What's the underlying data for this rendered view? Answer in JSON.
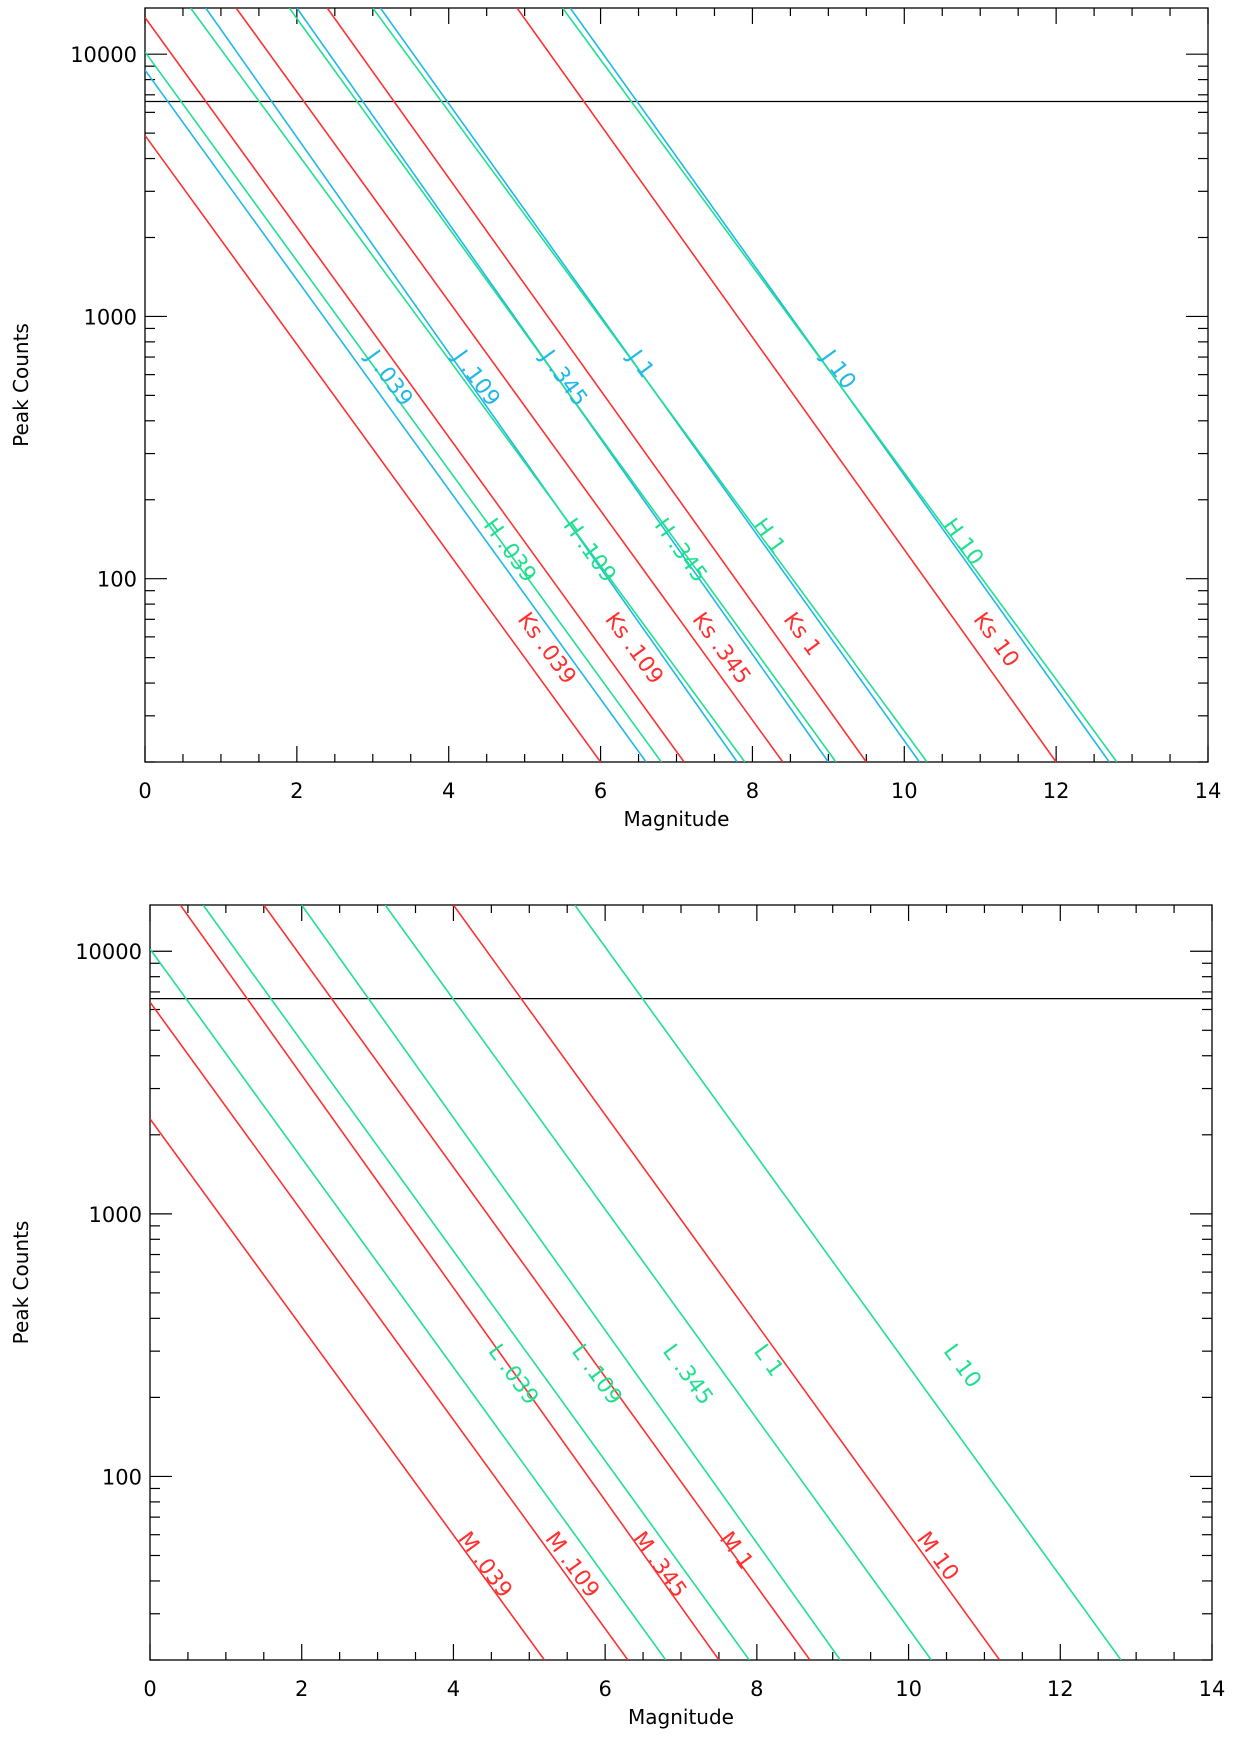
{
  "chart_data": [
    {
      "type": "line",
      "panel": "top",
      "xlabel": "Magnitude",
      "ylabel": "Peak Counts",
      "xlim": [
        0,
        14
      ],
      "ylim": [
        20,
        15000
      ],
      "yscale": "log",
      "grid": false,
      "x_ticks": [
        0,
        2,
        4,
        6,
        8,
        10,
        12,
        14
      ],
      "x_tick_labels": [
        "0",
        "2",
        "4",
        "6",
        "8",
        "10",
        "12",
        "14"
      ],
      "y_ticks": [
        100,
        1000,
        10000
      ],
      "y_tick_labels": [
        "100",
        "1000",
        "10000"
      ],
      "reference_line": {
        "y": 6600,
        "color": "#000000"
      },
      "series": [
        {
          "name": "Ks .039",
          "color": "#ff3030",
          "x": [
            0,
            6.0
          ],
          "y": [
            4900,
            20
          ]
        },
        {
          "name": "J .039",
          "color": "#20b8e8",
          "x": [
            0,
            6.6
          ],
          "y": [
            8700,
            20
          ]
        },
        {
          "name": "H .039",
          "color": "#20e090",
          "x": [
            0,
            6.8
          ],
          "y": [
            10200,
            20
          ]
        },
        {
          "name": "Ks .109",
          "color": "#ff3030",
          "x": [
            0,
            7.1
          ],
          "y": [
            13800,
            20
          ]
        },
        {
          "name": "J .109",
          "color": "#20b8e8",
          "x": [
            0.8,
            7.8
          ],
          "y": [
            15000,
            20
          ]
        },
        {
          "name": "H .109",
          "color": "#20e090",
          "x": [
            0.6,
            7.9
          ],
          "y": [
            15000,
            20
          ]
        },
        {
          "name": "Ks .345",
          "color": "#ff3030",
          "x": [
            1.2,
            8.4
          ],
          "y": [
            15000,
            20
          ]
        },
        {
          "name": "J .345",
          "color": "#20b8e8",
          "x": [
            2.0,
            9.0
          ],
          "y": [
            15000,
            20
          ]
        },
        {
          "name": "H .345",
          "color": "#20e090",
          "x": [
            1.9,
            9.1
          ],
          "y": [
            15000,
            20
          ]
        },
        {
          "name": "Ks 1",
          "color": "#ff3030",
          "x": [
            2.4,
            9.5
          ],
          "y": [
            15000,
            20
          ]
        },
        {
          "name": "J 1",
          "color": "#20b8e8",
          "x": [
            3.1,
            10.2
          ],
          "y": [
            15000,
            20
          ]
        },
        {
          "name": "H 1",
          "color": "#20e090",
          "x": [
            3.0,
            10.3
          ],
          "y": [
            15000,
            20
          ]
        },
        {
          "name": "Ks 10",
          "color": "#ff3030",
          "x": [
            4.9,
            12.0
          ],
          "y": [
            15000,
            20
          ]
        },
        {
          "name": "J 10",
          "color": "#20b8e8",
          "x": [
            5.6,
            12.7
          ],
          "y": [
            15000,
            20
          ]
        },
        {
          "name": "H 10",
          "color": "#20e090",
          "x": [
            5.5,
            12.8
          ],
          "y": [
            15000,
            20
          ]
        }
      ],
      "labels": [
        {
          "text": "J .039",
          "color": "#20b8e8",
          "x": 2.9,
          "y": 700
        },
        {
          "text": "J .109",
          "color": "#20b8e8",
          "x": 4.05,
          "y": 700
        },
        {
          "text": "J .345",
          "color": "#20b8e8",
          "x": 5.2,
          "y": 700
        },
        {
          "text": "J 1",
          "color": "#20b8e8",
          "x": 6.35,
          "y": 700
        },
        {
          "text": "J 10",
          "color": "#20b8e8",
          "x": 8.9,
          "y": 700
        },
        {
          "text": "H .039",
          "color": "#20e090",
          "x": 4.45,
          "y": 160
        },
        {
          "text": "H .109",
          "color": "#20e090",
          "x": 5.5,
          "y": 160
        },
        {
          "text": "H .345",
          "color": "#20e090",
          "x": 6.7,
          "y": 160
        },
        {
          "text": "H 1",
          "color": "#20e090",
          "x": 8.0,
          "y": 160
        },
        {
          "text": "H 10",
          "color": "#20e090",
          "x": 10.5,
          "y": 160
        },
        {
          "text": "Ks .039",
          "color": "#ff3030",
          "x": 4.9,
          "y": 70
        },
        {
          "text": "Ks .109",
          "color": "#ff3030",
          "x": 6.05,
          "y": 70
        },
        {
          "text": "Ks .345",
          "color": "#ff3030",
          "x": 7.2,
          "y": 70
        },
        {
          "text": "Ks 1",
          "color": "#ff3030",
          "x": 8.4,
          "y": 70
        },
        {
          "text": "Ks 10",
          "color": "#ff3030",
          "x": 10.9,
          "y": 70
        }
      ]
    },
    {
      "type": "line",
      "panel": "bottom",
      "xlabel": "Magnitude",
      "ylabel": "Peak Counts",
      "xlim": [
        0,
        14
      ],
      "ylim": [
        20,
        15000
      ],
      "yscale": "log",
      "grid": false,
      "x_ticks": [
        0,
        2,
        4,
        6,
        8,
        10,
        12,
        14
      ],
      "x_tick_labels": [
        "0",
        "2",
        "4",
        "6",
        "8",
        "10",
        "12",
        "14"
      ],
      "y_ticks": [
        100,
        1000,
        10000
      ],
      "y_tick_labels": [
        "100",
        "1000",
        "10000"
      ],
      "reference_line": {
        "y": 6600,
        "color": "#000000"
      },
      "series": [
        {
          "name": "M .039",
          "color": "#ff3030",
          "x": [
            0,
            5.2
          ],
          "y": [
            2300,
            20
          ]
        },
        {
          "name": "M .109",
          "color": "#ff3030",
          "x": [
            0,
            6.3
          ],
          "y": [
            6400,
            20
          ]
        },
        {
          "name": "L .039",
          "color": "#20e090",
          "x": [
            0,
            6.8
          ],
          "y": [
            10200,
            20
          ]
        },
        {
          "name": "M .345",
          "color": "#ff3030",
          "x": [
            0.4,
            7.5
          ],
          "y": [
            15000,
            20
          ]
        },
        {
          "name": "L .109",
          "color": "#20e090",
          "x": [
            0.7,
            7.9
          ],
          "y": [
            15000,
            20
          ]
        },
        {
          "name": "M 1",
          "color": "#ff3030",
          "x": [
            1.5,
            8.7
          ],
          "y": [
            15000,
            20
          ]
        },
        {
          "name": "L .345",
          "color": "#20e090",
          "x": [
            2.0,
            9.1
          ],
          "y": [
            15000,
            20
          ]
        },
        {
          "name": "L 1",
          "color": "#20e090",
          "x": [
            3.1,
            10.3
          ],
          "y": [
            15000,
            20
          ]
        },
        {
          "name": "M 10",
          "color": "#ff3030",
          "x": [
            4.0,
            11.2
          ],
          "y": [
            15000,
            20
          ]
        },
        {
          "name": "L 10",
          "color": "#20e090",
          "x": [
            5.6,
            12.8
          ],
          "y": [
            15000,
            20
          ]
        }
      ],
      "labels": [
        {
          "text": "L .039",
          "color": "#20e090",
          "x": 4.45,
          "y": 300
        },
        {
          "text": "L .109",
          "color": "#20e090",
          "x": 5.55,
          "y": 300
        },
        {
          "text": "L .345",
          "color": "#20e090",
          "x": 6.75,
          "y": 300
        },
        {
          "text": "L 1",
          "color": "#20e090",
          "x": 7.95,
          "y": 300
        },
        {
          "text": "L 10",
          "color": "#20e090",
          "x": 10.45,
          "y": 300
        },
        {
          "text": "M .039",
          "color": "#ff3030",
          "x": 4.05,
          "y": 58
        },
        {
          "text": "M .109",
          "color": "#ff3030",
          "x": 5.2,
          "y": 58
        },
        {
          "text": "M .345",
          "color": "#ff3030",
          "x": 6.35,
          "y": 58
        },
        {
          "text": "M 1",
          "color": "#ff3030",
          "x": 7.5,
          "y": 58
        },
        {
          "text": "M 10",
          "color": "#ff3030",
          "x": 10.1,
          "y": 58
        }
      ]
    }
  ]
}
